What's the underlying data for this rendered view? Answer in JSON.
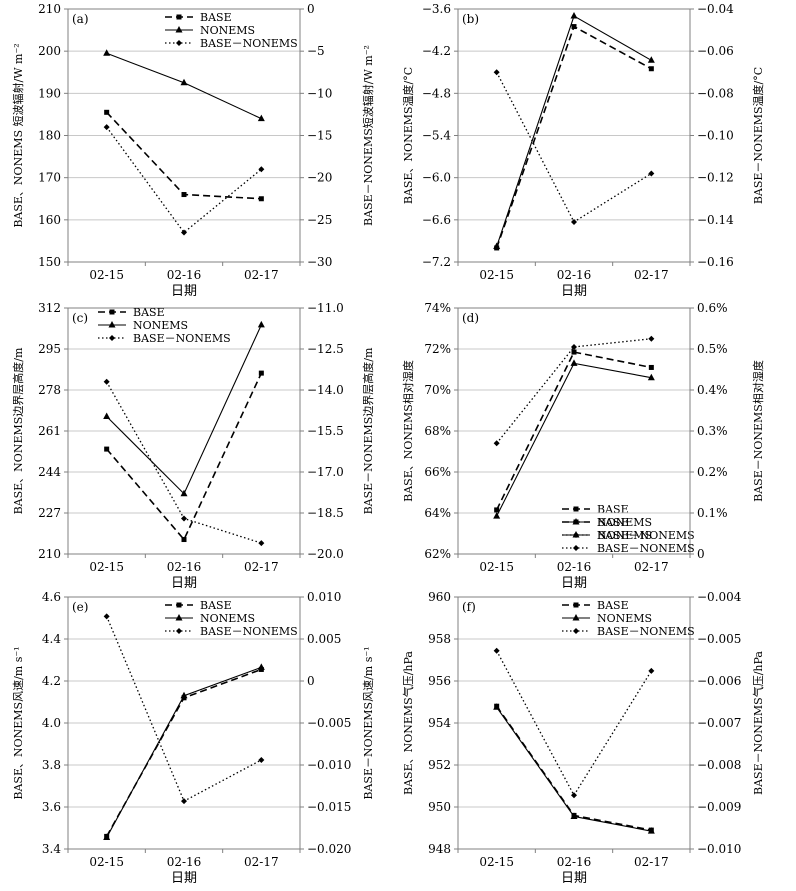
{
  "chart_data": [
    {
      "type": "line",
      "panel_label": "(a)",
      "categories": [
        "02-15",
        "02-16",
        "02-17"
      ],
      "xlabel": "日期",
      "ylabel": "BASE、NONEMS 短波辐射/W m⁻²",
      "ylabel2": "BASE－NONEMS短波辐射/W m⁻²",
      "ylim": [
        150,
        210
      ],
      "ylim2": [
        -30,
        0
      ],
      "yticks": [
        "150",
        "160",
        "170",
        "180",
        "190",
        "200",
        "210"
      ],
      "yticks2": [
        "−30",
        "−25",
        "−20",
        "−15",
        "−10",
        "−5",
        "0"
      ],
      "legend_position": "top-right",
      "series": [
        {
          "name": "BASE",
          "axis": "left",
          "style": "dashed",
          "marker": "square",
          "values": [
            185.5,
            166,
            165
          ]
        },
        {
          "name": "NONEMS",
          "axis": "left",
          "style": "solid",
          "marker": "triangle",
          "values": [
            199.5,
            192.5,
            184
          ]
        },
        {
          "name": "BASE－NONEMS",
          "axis": "right",
          "style": "dotted",
          "marker": "diamond",
          "values": [
            -14,
            -26.5,
            -19
          ]
        }
      ]
    },
    {
      "type": "line",
      "panel_label": "(b)",
      "categories": [
        "02-15",
        "02-16",
        "02-17"
      ],
      "xlabel": "日期",
      "ylabel": "BASE、NONEMS温度/°C",
      "ylabel2": "BASE－NONEMS温度/°C",
      "ylim": [
        -7.2,
        -3.6
      ],
      "ylim2": [
        -0.16,
        -0.04
      ],
      "yticks": [
        "−7.2",
        "−6.6",
        "−6.0",
        "−5.4",
        "−4.8",
        "−4.2",
        "−3.6"
      ],
      "yticks2": [
        "−0.16",
        "−0.14",
        "−0.12",
        "−0.10",
        "−0.08",
        "−0.06",
        "−0.04"
      ],
      "legend_position": "bottom-right",
      "series": [
        {
          "name": "BASE",
          "axis": "left",
          "style": "dashed",
          "marker": "square",
          "values": [
            -7.0,
            -3.85,
            -4.45
          ]
        },
        {
          "name": "NONEMS",
          "axis": "left",
          "style": "solid",
          "marker": "triangle",
          "values": [
            -6.98,
            -3.7,
            -4.33
          ]
        },
        {
          "name": "BASE－NONEMS",
          "axis": "right",
          "style": "dotted",
          "marker": "diamond",
          "values": [
            -0.07,
            -0.141,
            -0.118
          ]
        }
      ]
    },
    {
      "type": "line",
      "panel_label": "(c)",
      "categories": [
        "02-15",
        "02-16",
        "02-17"
      ],
      "xlabel": "日期",
      "ylabel": "BASE、NONEMS边界层高度/m",
      "ylabel2": "BASE－NONEMS边界层高度/m",
      "ylim": [
        210,
        312
      ],
      "ylim2": [
        -20.0,
        -11.0
      ],
      "yticks": [
        "210",
        "227",
        "244",
        "261",
        "278",
        "295",
        "312"
      ],
      "yticks2": [
        "−20.0",
        "−18.5",
        "−17.0",
        "−15.5",
        "−14.0",
        "−12.5",
        "−11.0"
      ],
      "legend_position": "top-left",
      "series": [
        {
          "name": "BASE",
          "axis": "left",
          "style": "dashed",
          "marker": "square",
          "values": [
            253.5,
            216,
            285
          ]
        },
        {
          "name": "NONEMS",
          "axis": "left",
          "style": "solid",
          "marker": "triangle",
          "values": [
            267,
            235,
            305
          ]
        },
        {
          "name": "BASE－NONEMS",
          "axis": "right",
          "style": "dotted",
          "marker": "diamond",
          "values": [
            -13.7,
            -18.7,
            -19.6
          ]
        }
      ]
    },
    {
      "type": "line",
      "panel_label": "(d)",
      "categories": [
        "02-15",
        "02-16",
        "02-17"
      ],
      "xlabel": "日期",
      "ylabel": "BASE、NONEMS相对湿度",
      "ylabel2": "BASE－NONEMS相对湿度",
      "ylim": [
        62,
        74
      ],
      "ylim2": [
        0,
        0.6
      ],
      "yticks": [
        "62%",
        "64%",
        "66%",
        "68%",
        "70%",
        "72%",
        "74%"
      ],
      "yticks2": [
        "0",
        "0.1%",
        "0.2%",
        "0.3%",
        "0.4%",
        "0.5%",
        "0.6%"
      ],
      "legend_position": "bottom-right",
      "series": [
        {
          "name": "BASE",
          "axis": "left",
          "style": "dashed",
          "marker": "square",
          "values": [
            64.15,
            71.85,
            71.1
          ]
        },
        {
          "name": "NONEMS",
          "axis": "left",
          "style": "solid",
          "marker": "triangle",
          "values": [
            63.85,
            71.3,
            70.6
          ]
        },
        {
          "name": "BASE－NONEMS",
          "axis": "right",
          "style": "dotted",
          "marker": "diamond",
          "values": [
            0.27,
            0.505,
            0.525
          ]
        }
      ]
    },
    {
      "type": "line",
      "panel_label": "(e)",
      "categories": [
        "02-15",
        "02-16",
        "02-17"
      ],
      "xlabel": "日期",
      "ylabel": "BASE、NONEMS风速/m s⁻¹",
      "ylabel2": "BASE－NONEMS风速/m s⁻¹",
      "ylim": [
        3.4,
        4.6
      ],
      "ylim2": [
        -0.02,
        0.01
      ],
      "yticks": [
        "3.4",
        "3.6",
        "3.8",
        "4.0",
        "4.2",
        "4.4",
        "4.6"
      ],
      "yticks2": [
        "−0.020",
        "−0.015",
        "−0.010",
        "−0.005",
        "0",
        "0.005",
        "0.010"
      ],
      "legend_position": "top-right",
      "series": [
        {
          "name": "BASE",
          "axis": "left",
          "style": "dashed",
          "marker": "square",
          "values": [
            3.46,
            4.12,
            4.255
          ]
        },
        {
          "name": "NONEMS",
          "axis": "left",
          "style": "solid",
          "marker": "triangle",
          "values": [
            3.455,
            4.13,
            4.265
          ]
        },
        {
          "name": "BASE－NONEMS",
          "axis": "right",
          "style": "dotted",
          "marker": "diamond",
          "values": [
            0.0077,
            -0.0143,
            -0.0094
          ]
        }
      ]
    },
    {
      "type": "line",
      "panel_label": "(f)",
      "categories": [
        "02-15",
        "02-16",
        "02-17"
      ],
      "xlabel": "日期",
      "ylabel": "BASE、NONEMS气压/hPa",
      "ylabel2": "BASE－NONEMS气压/hPa",
      "ylim": [
        948,
        960
      ],
      "ylim2": [
        -0.01,
        -0.004
      ],
      "yticks": [
        "948",
        "950",
        "952",
        "954",
        "956",
        "958",
        "960"
      ],
      "yticks2": [
        "−0.010",
        "−0.009",
        "−0.008",
        "−0.007",
        "−0.006",
        "−0.005",
        "−0.004"
      ],
      "legend_position": "top-right",
      "series": [
        {
          "name": "BASE",
          "axis": "left",
          "style": "dashed",
          "marker": "square",
          "values": [
            954.8,
            949.6,
            948.9
          ]
        },
        {
          "name": "NONEMS",
          "axis": "left",
          "style": "solid",
          "marker": "triangle",
          "values": [
            954.75,
            949.55,
            948.85
          ]
        },
        {
          "name": "BASE－NONEMS",
          "axis": "right",
          "style": "dotted",
          "marker": "diamond",
          "values": [
            -0.00528,
            -0.00872,
            -0.00576
          ]
        }
      ]
    }
  ]
}
